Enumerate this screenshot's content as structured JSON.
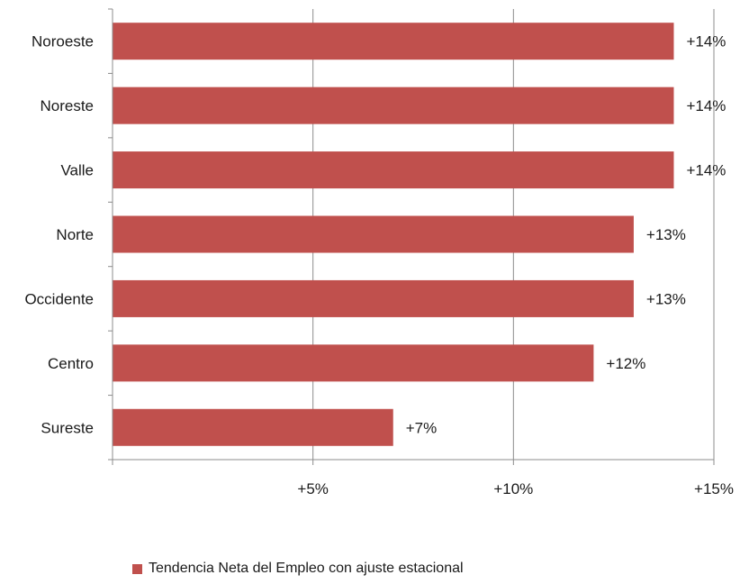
{
  "chart_data": {
    "type": "bar",
    "orientation": "horizontal",
    "categories": [
      "Noroeste",
      "Noreste",
      "Valle",
      "Norte",
      "Occidente",
      "Centro",
      "Sureste"
    ],
    "values": [
      14,
      14,
      14,
      13,
      13,
      12,
      7
    ],
    "data_labels": [
      "+14%",
      "+14%",
      "+14%",
      "+13%",
      "+13%",
      "+12%",
      "+7%"
    ],
    "xlim": [
      0,
      15
    ],
    "x_ticks": [
      0,
      5,
      10,
      15
    ],
    "x_tick_labels": [
      "",
      "+5%",
      "+10%",
      "+15%"
    ],
    "grid": true,
    "legend_position": "bottom",
    "series": [
      {
        "name": "Tendencia Neta del Empleo con ajuste estacional",
        "color": "#c0504d"
      }
    ]
  }
}
